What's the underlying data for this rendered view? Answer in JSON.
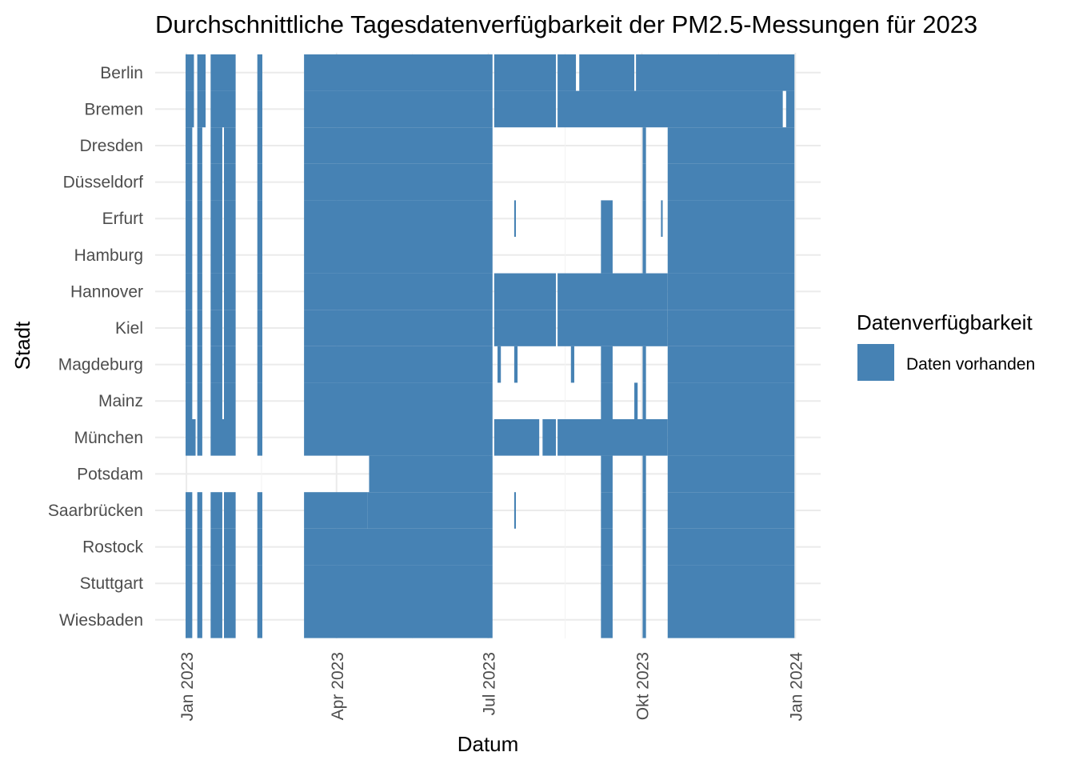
{
  "chart_data": {
    "type": "heatmap",
    "title": "Durchschnittliche Tagesdatenverfügbarkeit der PM2.5-Messungen für 2023",
    "xlabel": "Datum",
    "ylabel": "Stadt",
    "x_range": [
      "2022-12-31",
      "2024-01-01"
    ],
    "x_ticks": [
      {
        "date": "2023-01-01",
        "label": "Jan 2023"
      },
      {
        "date": "2023-04-01",
        "label": "Apr 2023"
      },
      {
        "date": "2023-07-01",
        "label": "Jul 2023"
      },
      {
        "date": "2023-10-01",
        "label": "Okt 2023"
      },
      {
        "date": "2024-01-01",
        "label": "Jan 2024"
      }
    ],
    "cities": [
      "Berlin",
      "Bremen",
      "Dresden",
      "Düsseldorf",
      "Erfurt",
      "Hamburg",
      "Hannover",
      "Kiel",
      "Magdeburg",
      "Mainz",
      "München",
      "Potsdam",
      "Saarbrücken",
      "Rostock",
      "Stuttgart",
      "Wiesbaden"
    ],
    "legend": {
      "title": "Datenverfügbarkeit",
      "entries": [
        {
          "label": "Daten vorhanden",
          "color": "#4682b4"
        }
      ],
      "position": "right"
    },
    "grid": true,
    "colors": {
      "data": "#4682b4",
      "grid": "#ebebeb",
      "background": "#ffffff"
    },
    "available_ranges": [
      {
        "cities": [
          "Berlin",
          "Bremen"
        ],
        "from": "2023-01-01",
        "to": "2023-01-05"
      },
      {
        "cities": [
          "Berlin",
          "Bremen"
        ],
        "from": "2023-01-08",
        "to": "2023-01-12"
      },
      {
        "cities": [
          "Berlin",
          "Bremen"
        ],
        "from": "2023-01-16",
        "to": "2023-01-30"
      },
      {
        "cities": [
          "Berlin",
          "Bremen"
        ],
        "from": "2023-02-13",
        "to": "2023-02-15"
      },
      {
        "cities": [
          "Berlin",
          "Bremen"
        ],
        "from": "2023-03-13",
        "to": "2023-07-03"
      },
      {
        "cities": [
          "Berlin",
          "Bremen"
        ],
        "from": "2023-07-05",
        "to": "2023-08-10"
      },
      {
        "cities": [
          "Berlin"
        ],
        "from": "2023-08-12",
        "to": "2023-08-22"
      },
      {
        "cities": [
          "Berlin"
        ],
        "from": "2023-08-25",
        "to": "2023-09-26"
      },
      {
        "cities": [
          "Berlin"
        ],
        "from": "2023-09-28",
        "to": "2023-12-31"
      },
      {
        "cities": [
          "Bremen"
        ],
        "from": "2023-08-12",
        "to": "2023-12-24"
      },
      {
        "cities": [
          "Bremen"
        ],
        "from": "2023-12-27",
        "to": "2023-12-31"
      },
      {
        "cities": [
          "Dresden",
          "Düsseldorf",
          "Erfurt",
          "Hamburg",
          "Hannover",
          "Kiel",
          "Magdeburg",
          "Mainz"
        ],
        "from": "2023-01-01",
        "to": "2023-01-04"
      },
      {
        "cities": [
          "Dresden",
          "Düsseldorf",
          "Erfurt",
          "Hamburg",
          "Hannover",
          "Kiel",
          "Magdeburg",
          "Mainz"
        ],
        "from": "2023-01-08",
        "to": "2023-01-10"
      },
      {
        "cities": [
          "Dresden",
          "Düsseldorf",
          "Erfurt",
          "Hamburg",
          "Hannover",
          "Kiel",
          "Magdeburg",
          "Mainz"
        ],
        "from": "2023-01-16",
        "to": "2023-01-22"
      },
      {
        "cities": [
          "Dresden",
          "Düsseldorf",
          "Erfurt",
          "Hamburg",
          "Hannover",
          "Kiel",
          "Magdeburg",
          "Mainz"
        ],
        "from": "2023-01-24",
        "to": "2023-01-30"
      },
      {
        "cities": [
          "Dresden",
          "Düsseldorf",
          "Erfurt",
          "Hamburg",
          "Hannover",
          "Kiel",
          "Magdeburg",
          "Mainz"
        ],
        "from": "2023-02-13",
        "to": "2023-02-15"
      },
      {
        "cities": [
          "Dresden",
          "Düsseldorf",
          "Erfurt",
          "Hamburg",
          "Hannover",
          "Kiel",
          "Magdeburg",
          "Mainz",
          "München"
        ],
        "from": "2023-03-13",
        "to": "2023-07-03"
      },
      {
        "cities": [
          "Dresden",
          "Düsseldorf",
          "Erfurt",
          "Hamburg",
          "Hannover",
          "Kiel",
          "Magdeburg",
          "Mainz",
          "München",
          "Potsdam",
          "Saarbrücken",
          "Rostock",
          "Stuttgart",
          "Wiesbaden"
        ],
        "from": "2023-10-17",
        "to": "2023-12-31"
      },
      {
        "cities": [
          "Hannover",
          "Kiel"
        ],
        "from": "2023-07-05",
        "to": "2023-08-10"
      },
      {
        "cities": [
          "Hannover",
          "Kiel"
        ],
        "from": "2023-08-12",
        "to": "2023-10-16"
      },
      {
        "cities": [
          "Erfurt",
          "Hamburg",
          "Magdeburg",
          "Mainz",
          "München",
          "Potsdam",
          "Saarbrücken",
          "Rostock",
          "Stuttgart",
          "Wiesbaden"
        ],
        "from": "2023-09-07",
        "to": "2023-09-13"
      },
      {
        "cities": [
          "Dresden",
          "Düsseldorf",
          "Erfurt",
          "Hamburg",
          "Magdeburg",
          "Mainz",
          "München",
          "Potsdam",
          "Saarbrücken",
          "Rostock",
          "Stuttgart",
          "Wiesbaden"
        ],
        "from": "2023-10-02",
        "to": "2023-10-03"
      },
      {
        "cities": [
          "Erfurt"
        ],
        "from": "2023-07-17",
        "to": "2023-07-17"
      },
      {
        "cities": [
          "Erfurt"
        ],
        "from": "2023-10-13",
        "to": "2023-10-13"
      },
      {
        "cities": [
          "Magdeburg"
        ],
        "from": "2023-07-07",
        "to": "2023-07-08"
      },
      {
        "cities": [
          "Magdeburg"
        ],
        "from": "2023-07-17",
        "to": "2023-07-18"
      },
      {
        "cities": [
          "Magdeburg"
        ],
        "from": "2023-08-20",
        "to": "2023-08-21"
      },
      {
        "cities": [
          "Mainz"
        ],
        "from": "2023-09-27",
        "to": "2023-09-28"
      },
      {
        "cities": [
          "München"
        ],
        "from": "2023-01-01",
        "to": "2023-01-06"
      },
      {
        "cities": [
          "München"
        ],
        "from": "2023-01-08",
        "to": "2023-01-10"
      },
      {
        "cities": [
          "München"
        ],
        "from": "2023-01-16",
        "to": "2023-01-30"
      },
      {
        "cities": [
          "München"
        ],
        "from": "2023-02-13",
        "to": "2023-02-15"
      },
      {
        "cities": [
          "München"
        ],
        "from": "2023-07-05",
        "to": "2023-07-31"
      },
      {
        "cities": [
          "München"
        ],
        "from": "2023-08-03",
        "to": "2023-08-10"
      },
      {
        "cities": [
          "München"
        ],
        "from": "2023-08-12",
        "to": "2023-10-16"
      },
      {
        "cities": [
          "Potsdam"
        ],
        "from": "2023-04-21",
        "to": "2023-07-03"
      },
      {
        "cities": [
          "Saarbrücken",
          "Rostock",
          "Stuttgart",
          "Wiesbaden"
        ],
        "from": "2023-01-01",
        "to": "2023-01-04"
      },
      {
        "cities": [
          "Saarbrücken",
          "Rostock",
          "Stuttgart",
          "Wiesbaden"
        ],
        "from": "2023-01-08",
        "to": "2023-01-10"
      },
      {
        "cities": [
          "Saarbrücken",
          "Rostock",
          "Stuttgart",
          "Wiesbaden"
        ],
        "from": "2023-01-16",
        "to": "2023-01-22"
      },
      {
        "cities": [
          "Saarbrücken",
          "Rostock",
          "Stuttgart",
          "Wiesbaden"
        ],
        "from": "2023-01-24",
        "to": "2023-01-30"
      },
      {
        "cities": [
          "Saarbrücken",
          "Rostock",
          "Stuttgart",
          "Wiesbaden"
        ],
        "from": "2023-02-13",
        "to": "2023-02-15"
      },
      {
        "cities": [
          "Saarbrücken"
        ],
        "from": "2023-03-13",
        "to": "2023-04-19"
      },
      {
        "cities": [
          "Saarbrücken"
        ],
        "from": "2023-04-20",
        "to": "2023-07-03"
      },
      {
        "cities": [
          "Saarbrücken"
        ],
        "from": "2023-07-17",
        "to": "2023-07-17"
      },
      {
        "cities": [
          "Rostock",
          "Stuttgart",
          "Wiesbaden"
        ],
        "from": "2023-03-13",
        "to": "2023-07-03"
      }
    ]
  }
}
